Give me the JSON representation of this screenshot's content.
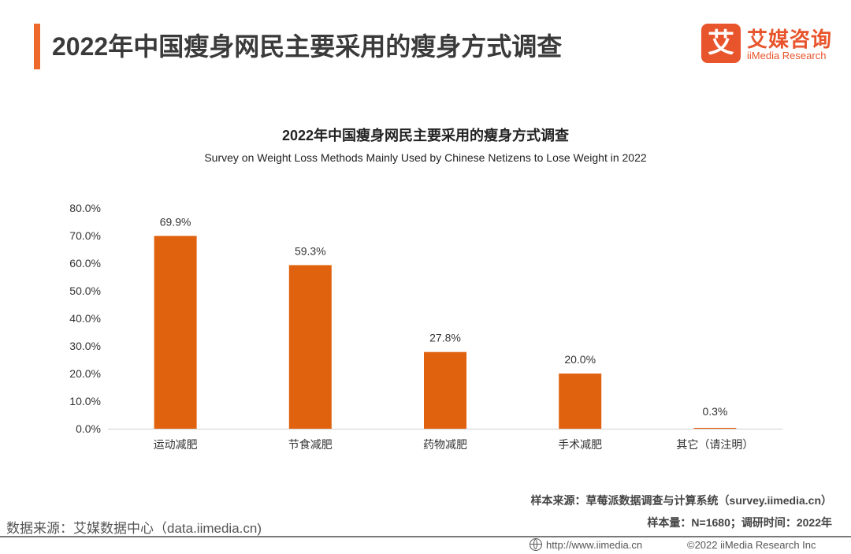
{
  "header": {
    "title": "2022年中国瘦身网民主要采用的瘦身方式调查",
    "logo_cn": "艾媒咨询",
    "logo_en": "iiMedia Research",
    "logo_mark": "艾"
  },
  "chart_data": {
    "type": "bar",
    "title": "2022年中国瘦身网民主要采用的瘦身方式调查",
    "subtitle": "Survey on Weight Loss Methods Mainly Used by Chinese Netizens to Lose Weight in 2022",
    "categories": [
      "运动减肥",
      "节食减肥",
      "药物减肥",
      "手术减肥",
      "其它（请注明）"
    ],
    "values": [
      69.9,
      59.3,
      27.8,
      20.0,
      0.3
    ],
    "data_labels": [
      "69.9%",
      "59.3%",
      "27.8%",
      "20.0%",
      "0.3%"
    ],
    "ylim": [
      0,
      80
    ],
    "yticks": [
      0,
      10,
      20,
      30,
      40,
      50,
      60,
      70,
      80
    ],
    "ytick_labels": [
      "0.0%",
      "10.0%",
      "20.0%",
      "30.0%",
      "40.0%",
      "50.0%",
      "60.0%",
      "70.0%",
      "80.0%"
    ],
    "grid": false,
    "bar_color": "#e0620e",
    "xlabel": "",
    "ylabel": ""
  },
  "notes": {
    "sample_source": "样本来源：草莓派数据调查与计算系统（survey.iimedia.cn）",
    "sample_size": "样本量：N=1680；调研时间：2022年",
    "data_source": "数据来源：艾媒数据中心（data.iimedia.cn)"
  },
  "footer": {
    "url": "http://www.iimedia.cn",
    "copyright": "©2022  iiMedia Research  Inc"
  },
  "colors": {
    "accent": "#ee6a2c",
    "brand": "#e8542b"
  }
}
